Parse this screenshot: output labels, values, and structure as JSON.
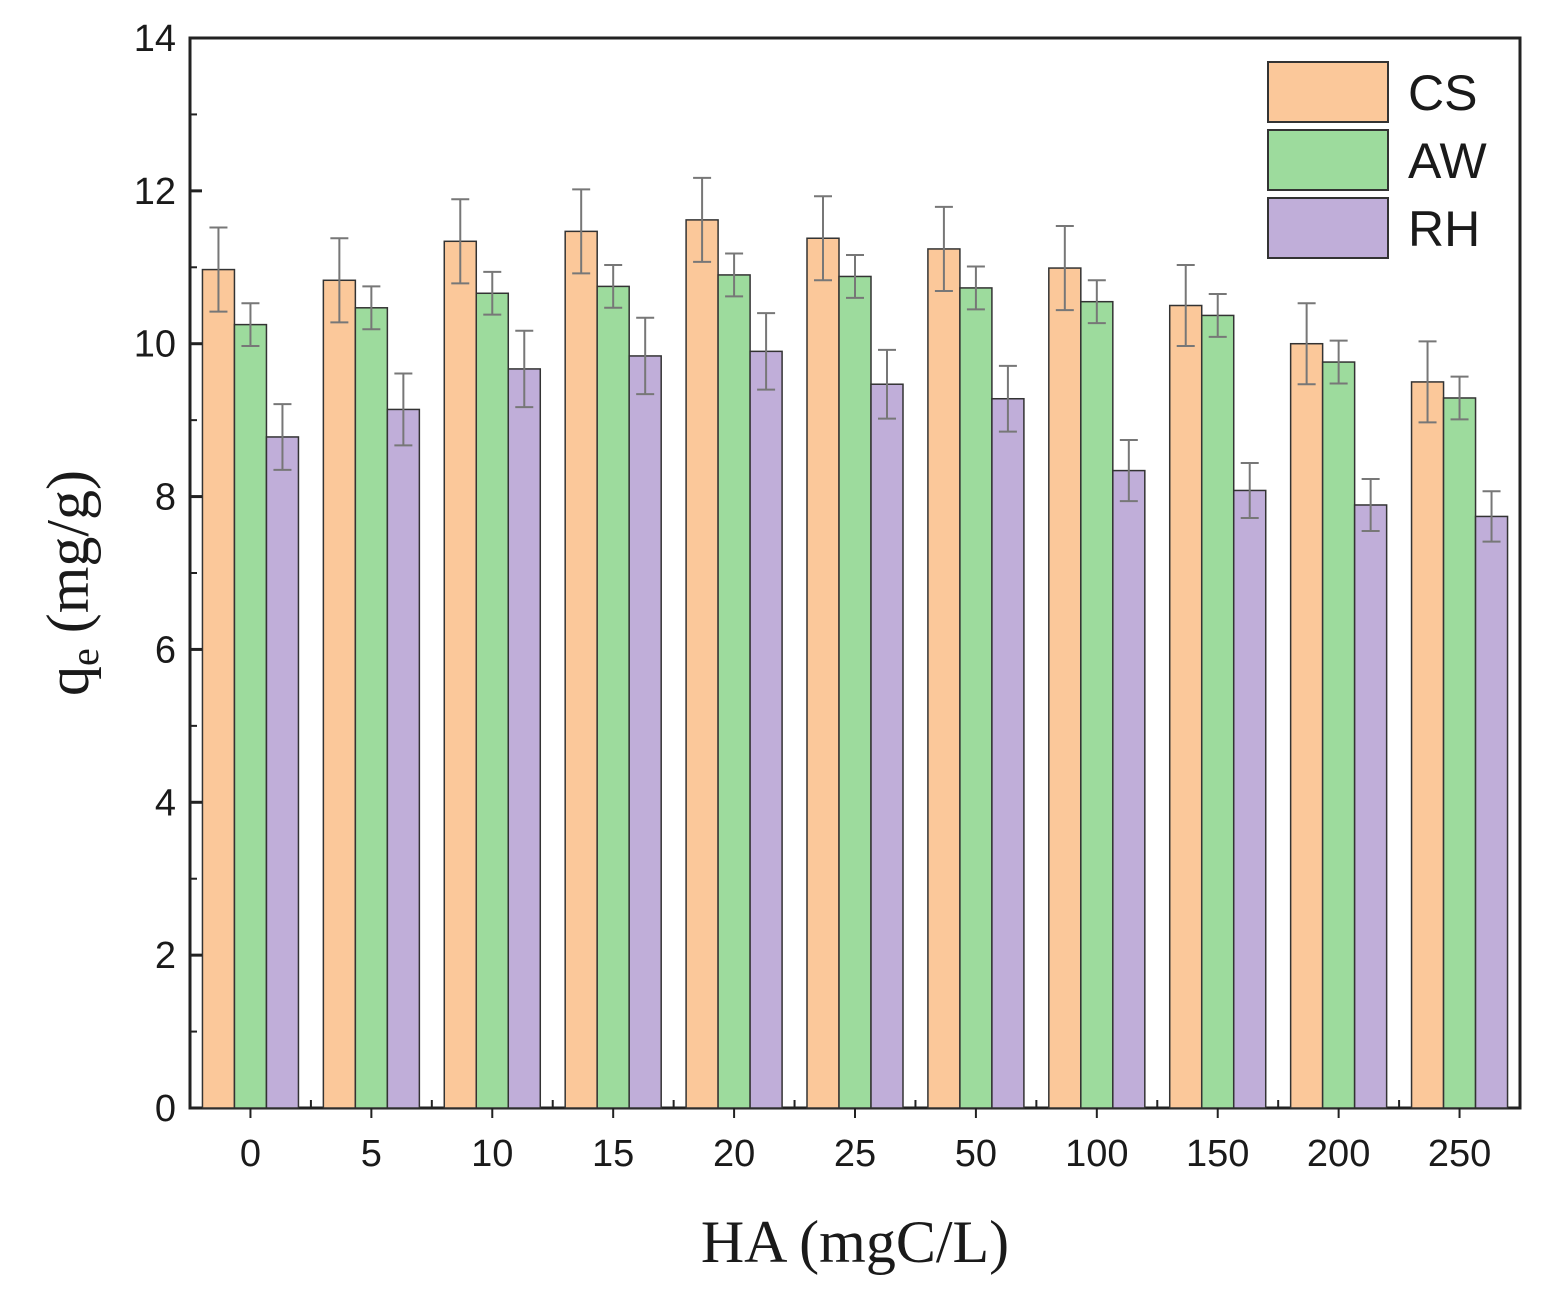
{
  "chart_data": {
    "type": "bar",
    "title": "",
    "xlabel": "HA (mgC/L)",
    "ylabel_main": "q",
    "ylabel_sub": "e",
    "ylabel_unit": " (mg/g)",
    "ylim": [
      0,
      14
    ],
    "yticks": [
      0,
      2,
      4,
      6,
      8,
      10,
      12,
      14
    ],
    "categories": [
      "0",
      "5",
      "10",
      "15",
      "20",
      "25",
      "50",
      "100",
      "150",
      "200",
      "250"
    ],
    "legend_position": "top-right",
    "series": [
      {
        "name": "CS",
        "color": "#FBC89A",
        "values": [
          10.97,
          10.83,
          11.34,
          11.47,
          11.62,
          11.38,
          11.24,
          10.99,
          10.5,
          10.0,
          9.5
        ],
        "errors": [
          0.55,
          0.55,
          0.55,
          0.55,
          0.55,
          0.55,
          0.55,
          0.55,
          0.53,
          0.53,
          0.53
        ]
      },
      {
        "name": "AW",
        "color": "#9DDB9D",
        "values": [
          10.25,
          10.47,
          10.66,
          10.75,
          10.9,
          10.88,
          10.73,
          10.55,
          10.37,
          9.76,
          9.29
        ],
        "errors": [
          0.28,
          0.28,
          0.28,
          0.28,
          0.28,
          0.28,
          0.28,
          0.28,
          0.28,
          0.28,
          0.28
        ]
      },
      {
        "name": "RH",
        "color": "#C0AED9",
        "values": [
          8.78,
          9.14,
          9.67,
          9.84,
          9.9,
          9.47,
          9.28,
          8.34,
          8.08,
          7.89,
          7.74
        ],
        "errors": [
          0.43,
          0.47,
          0.5,
          0.5,
          0.5,
          0.45,
          0.43,
          0.4,
          0.36,
          0.34,
          0.33
        ]
      }
    ]
  }
}
